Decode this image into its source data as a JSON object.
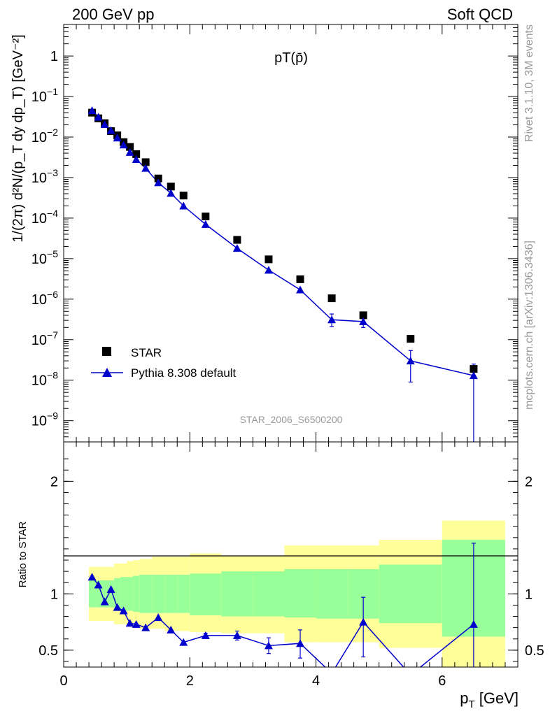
{
  "header": {
    "left": "200 GeV pp",
    "right": "Soft QCD"
  },
  "side_text": {
    "rivet": "Rivet 3.1.10,  3M events",
    "mcplots": "mcplots.cern.ch [arXiv:1306.3436]"
  },
  "chart_data": [
    {
      "type": "scatter",
      "title": "pT(p̄)",
      "analysis_label": "STAR_2006_S6500200",
      "ylabel": "1/(2π) d²N/(p_T dy dp_T) [GeV⁻²]",
      "y_scale": "log",
      "ylim": [
        3e-10,
        6
      ],
      "xlim": [
        0,
        7.2
      ],
      "y_tick_labels": [
        "1",
        "10⁻¹",
        "10⁻²",
        "10⁻³",
        "10⁻⁴",
        "10⁻⁵",
        "10⁻⁶",
        "10⁻⁷",
        "10⁻⁸",
        "10⁻⁹"
      ],
      "y_tick_values": [
        1,
        0.1,
        0.01,
        0.001,
        0.0001,
        1e-05,
        1e-06,
        1e-07,
        1e-08,
        1e-09
      ],
      "legend_position": "bottom-left",
      "series": [
        {
          "name": "STAR",
          "marker": "square",
          "color": "#000000",
          "x": [
            0.45,
            0.55,
            0.65,
            0.75,
            0.85,
            0.95,
            1.05,
            1.15,
            1.3,
            1.5,
            1.7,
            1.9,
            2.25,
            2.75,
            3.25,
            3.75,
            4.25,
            4.75,
            5.5,
            6.5
          ],
          "y": [
            0.04,
            0.029,
            0.022,
            0.014,
            0.011,
            0.0075,
            0.0057,
            0.0038,
            0.0024,
            0.00095,
            0.0006,
            0.00036,
            0.00011,
            2.9e-05,
            9.6e-06,
            3.1e-06,
            1.05e-06,
            4e-07,
            1.05e-07,
            1.9e-08
          ]
        },
        {
          "name": "Pythia 8.308 default",
          "marker": "triangle",
          "color": "#0000cc",
          "x": [
            0.45,
            0.55,
            0.65,
            0.75,
            0.85,
            0.95,
            1.05,
            1.15,
            1.3,
            1.5,
            1.7,
            1.9,
            2.25,
            2.75,
            3.25,
            3.75,
            4.25,
            4.75,
            5.5,
            6.5
          ],
          "y": [
            0.045,
            0.031,
            0.0205,
            0.0145,
            0.0095,
            0.0064,
            0.0042,
            0.0028,
            0.0017,
            0.00075,
            0.00041,
            0.0002,
            7e-05,
            1.8e-05,
            5.2e-06,
            1.7e-06,
            3.1e-07,
            2.8e-07,
            3e-08,
            1.3e-08
          ],
          "y_err_low": [
            0,
            0,
            0,
            0,
            0,
            0,
            0,
            0,
            0,
            0,
            0,
            0,
            0,
            0,
            0,
            0,
            1e-07,
            8e-08,
            2.1e-08,
            1.29e-08
          ],
          "y_err_high": [
            0,
            0,
            0,
            0,
            0,
            0,
            0,
            0,
            0,
            0,
            0,
            0,
            0,
            0,
            0,
            0,
            1.2e-07,
            8e-08,
            2.4e-08,
            1.2e-08
          ]
        }
      ]
    },
    {
      "type": "line",
      "ylabel": "Ratio to STAR",
      "xlabel": "p_T [GeV]",
      "xlim": [
        0,
        7.2
      ],
      "ylim": [
        0.35,
        2.35
      ],
      "x_ticks": [
        0,
        2,
        4,
        6
      ],
      "y_ticks": [
        0.5,
        1,
        2
      ],
      "reference_line": 1,
      "band_colors": {
        "inner": "#99ff99",
        "outer": "#ffff99"
      },
      "bands": {
        "edges": [
          0.4,
          0.5,
          0.6,
          0.7,
          0.8,
          0.9,
          1.0,
          1.1,
          1.2,
          1.4,
          1.6,
          1.8,
          2.0,
          2.5,
          3.0,
          3.5,
          4.0,
          4.5,
          5.0,
          6.0,
          7.0
        ],
        "inner_low": [
          0.88,
          0.88,
          0.88,
          0.88,
          0.86,
          0.85,
          0.85,
          0.84,
          0.83,
          0.83,
          0.83,
          0.83,
          0.81,
          0.8,
          0.8,
          0.79,
          0.78,
          0.78,
          0.74,
          0.62
        ],
        "inner_high": [
          1.12,
          1.12,
          1.12,
          1.12,
          1.14,
          1.15,
          1.15,
          1.16,
          1.17,
          1.17,
          1.17,
          1.17,
          1.18,
          1.2,
          1.2,
          1.22,
          1.22,
          1.22,
          1.26,
          1.48
        ],
        "outer_low": [
          0.76,
          0.76,
          0.76,
          0.76,
          0.73,
          0.73,
          0.71,
          0.7,
          0.69,
          0.69,
          0.67,
          0.67,
          0.66,
          0.65,
          0.65,
          0.57,
          0.57,
          0.57,
          0.52,
          0.35
        ],
        "outer_high": [
          1.24,
          1.24,
          1.24,
          1.24,
          1.27,
          1.27,
          1.29,
          1.3,
          1.31,
          1.33,
          1.33,
          1.33,
          1.36,
          1.34,
          1.34,
          1.43,
          1.43,
          1.43,
          1.48,
          1.65
        ]
      },
      "series": [
        {
          "name": "Pythia 8.308 default",
          "color": "#0000cc",
          "x": [
            0.45,
            0.55,
            0.65,
            0.75,
            0.85,
            0.95,
            1.05,
            1.15,
            1.3,
            1.5,
            1.7,
            1.9,
            2.25,
            2.75,
            3.25,
            3.75,
            4.25,
            4.75,
            5.5,
            6.5
          ],
          "y": [
            1.15,
            1.08,
            0.93,
            1.04,
            0.88,
            0.85,
            0.74,
            0.73,
            0.7,
            0.79,
            0.68,
            0.57,
            0.63,
            0.63,
            0.54,
            0.56,
            0.295,
            0.75,
            0.28,
            0.73
          ],
          "y_err_low": [
            0,
            0,
            0,
            0,
            0,
            0,
            0,
            0,
            0,
            0,
            0,
            0,
            0.02,
            0.04,
            0.07,
            0.13,
            0,
            0.31,
            0,
            0.73
          ],
          "y_err_high": [
            0,
            0,
            0,
            0,
            0,
            0,
            0,
            0,
            0,
            0,
            0,
            0,
            0.02,
            0.04,
            0.07,
            0.12,
            0,
            0.22,
            0,
            0.72
          ]
        }
      ]
    }
  ]
}
